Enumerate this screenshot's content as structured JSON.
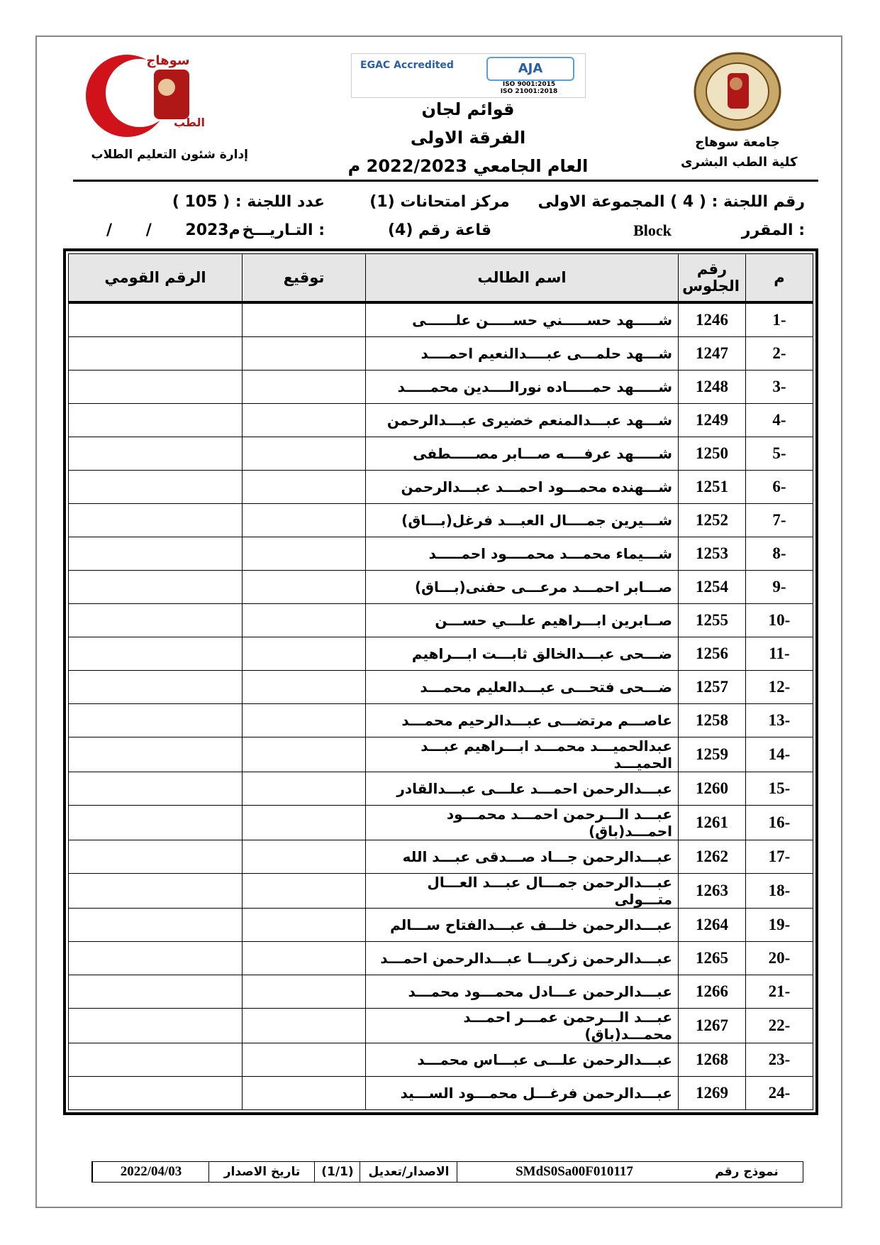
{
  "header": {
    "university": "جامعة سوهاج",
    "faculty": "كلية الطب البشرى",
    "department": "إدارة شئون التعليم الطلاب",
    "title": "قوائم لجان",
    "year_group": "الفرقة الاولى",
    "academic_year": "العام الجامعي 2022/2023 م",
    "cert_left": "EGAC Accredited",
    "cert_right": "AJA",
    "iso_1": "ISO 9001:2015",
    "iso_2": "ISO 21001:2018"
  },
  "info": {
    "committee": "رقم اللجنة : ( 4 ) المجموعة الاولى",
    "center": "مركز امتحانات (1)",
    "count": "عدد اللجنة : ( 105 )",
    "course_label": "المقرر :",
    "course": "Block",
    "hall": "قاعة رقم (4)",
    "date_label": "التـاريـــخ :",
    "date": "/ / 2023م"
  },
  "table": {
    "headers": [
      "م",
      "رقم الجلوس",
      "اسم الطالب",
      "توقيع",
      "الرقم القومي"
    ],
    "rows": [
      [
        "-1",
        "1246",
        "شـــــهد حســـــني حســـــن علــــــى"
      ],
      [
        "-2",
        "1247",
        "شـــهد حلمـــى عبــــدالنعيم احمــــد"
      ],
      [
        "-3",
        "1248",
        "شـــــهد حمـــــاده نورالــــدين محمـــــد"
      ],
      [
        "-4",
        "1249",
        "شـــهد عبـــدالمنعم خضيرى عبـــدالرحمن"
      ],
      [
        "-5",
        "1250",
        "شـــــهد عرفــــه صـــابر مصـــــطفى"
      ],
      [
        "-6",
        "1251",
        "شـــهنده محمـــود احمـــد عبـــدالرحمن"
      ],
      [
        "-7",
        "1252",
        "شـــيرين جمــــال العبـــد فرغل(بـــاق)"
      ],
      [
        "-8",
        "1253",
        "شـــيماء محمـــد محمــــود احمـــــد"
      ],
      [
        "-9",
        "1254",
        "صـــابر احمـــد مرعـــى حفنى(بـــاق)"
      ],
      [
        "-10",
        "1255",
        "صــابرين ابـــراهيم علـــي حســـن"
      ],
      [
        "-11",
        "1256",
        "ضـــحى عبـــدالخالق ثابـــت ابـــراهيم"
      ],
      [
        "-12",
        "1257",
        "ضـــحى فتحـــى عبـــدالعليم محمـــد"
      ],
      [
        "-13",
        "1258",
        "عاصـــم مرتضـــى عبـــدالرحيم محمـــد"
      ],
      [
        "-14",
        "1259",
        "عبدالحميـــد محمـــد ابـــراهيم عبـــد الحميـــد"
      ],
      [
        "-15",
        "1260",
        "عبـــدالرحمن احمـــد علـــى عبـــدالقادر"
      ],
      [
        "-16",
        "1261",
        "عبـــد الـــرحمن احمـــد محمـــود احمـــد(باق)"
      ],
      [
        "-17",
        "1262",
        "عبـــدالرحمن جـــاد صـــدقى عبـــد الله"
      ],
      [
        "-18",
        "1263",
        "عبـــدالرحمن جمـــال عبـــد العـــال متـــولى"
      ],
      [
        "-19",
        "1264",
        "عبـــدالرحمن خلـــف عبـــدالفتاح ســـالم"
      ],
      [
        "-20",
        "1265",
        "عبـــدالرحمن زكريـــا عبـــدالرحمن احمـــد"
      ],
      [
        "-21",
        "1266",
        "عبـــدالرحمن عـــادل محمـــود محمـــد"
      ],
      [
        "-22",
        "1267",
        "عبـــد الـــرحمن عمـــر احمـــد محمـــد(باق)"
      ],
      [
        "-23",
        "1268",
        "عبـــدالرحمن علـــى عبـــاس محمـــد"
      ],
      [
        "-24",
        "1269",
        "عبـــدالرحمن فرغـــل محمـــود الســـيد"
      ]
    ]
  },
  "footer": {
    "form_label": "نموذج رقم",
    "form_code": "SMdS0Sa00F010117",
    "version_label": "الاصدار/تعديل",
    "version": "(1/1)",
    "issue_label": "تاريخ الاصدار",
    "issue_date": "2022/04/03"
  }
}
